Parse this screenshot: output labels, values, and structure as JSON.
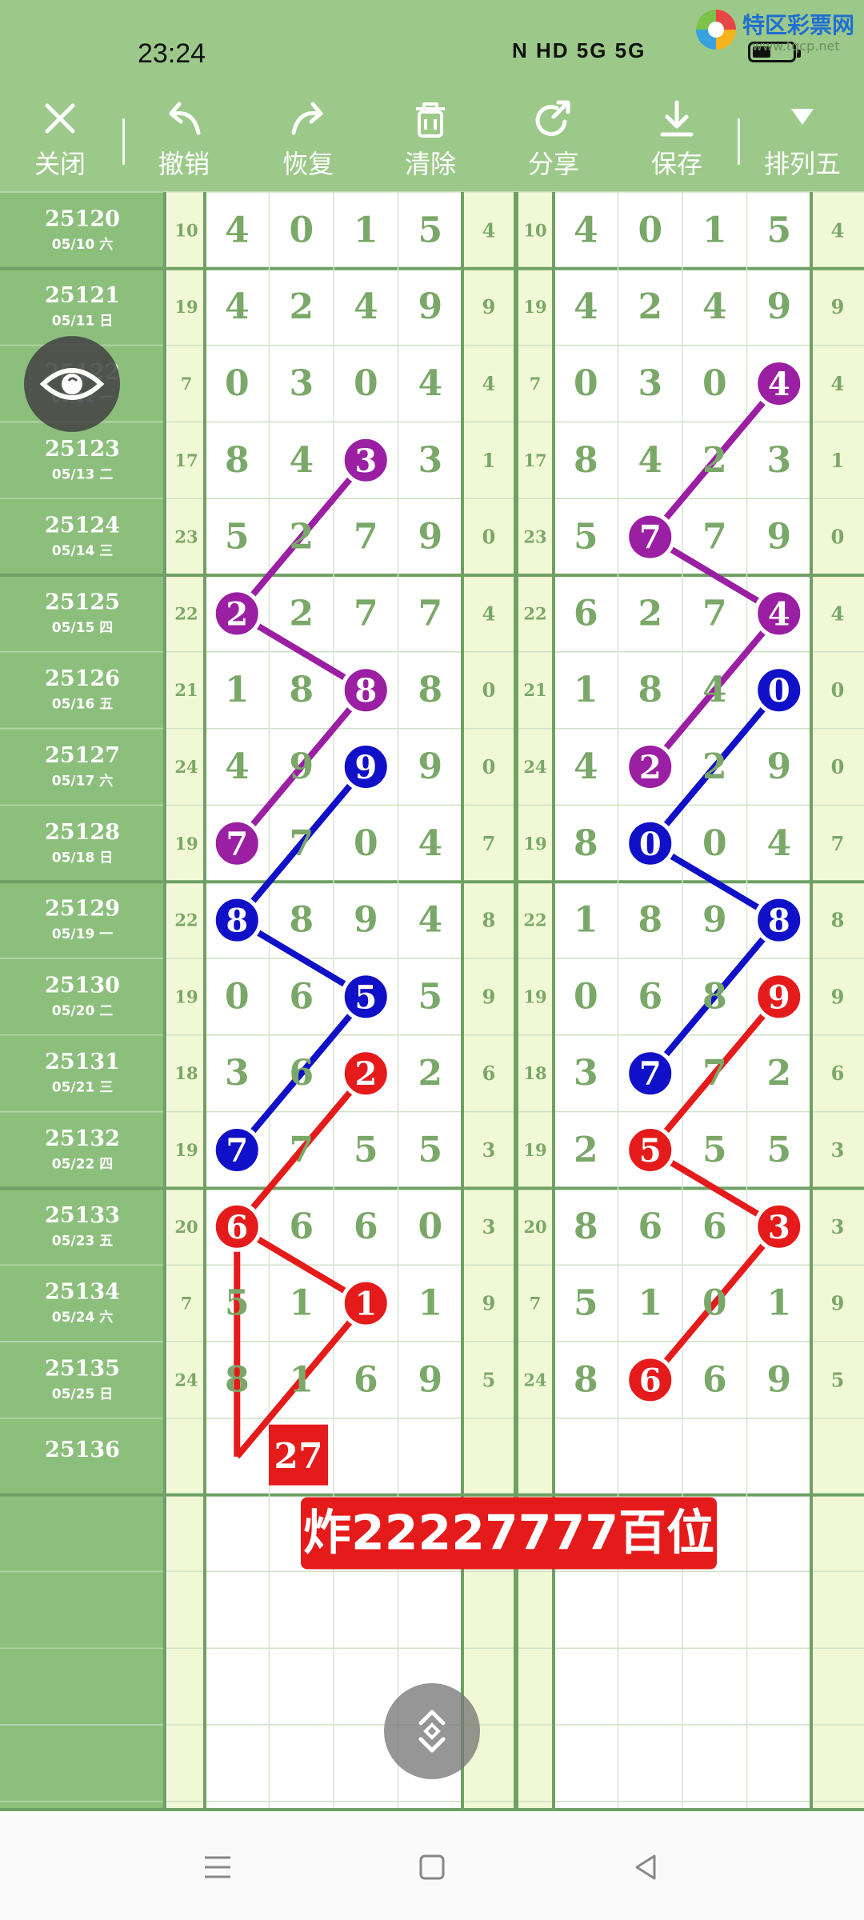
{
  "status": {
    "time": "23:24",
    "icons_text": "N  HD  5G 5G"
  },
  "watermark": {
    "title": "特区彩票网",
    "url": "www.tqcp.net"
  },
  "toolbar": {
    "items": [
      {
        "label": "关闭",
        "icon": "close-icon"
      },
      {
        "label": "撤销",
        "icon": "undo-icon"
      },
      {
        "label": "恢复",
        "icon": "redo-icon"
      },
      {
        "label": "清除",
        "icon": "trash-icon"
      },
      {
        "label": "分享",
        "icon": "share-icon"
      },
      {
        "label": "保存",
        "icon": "download-icon"
      },
      {
        "label": "排列五",
        "icon": "triangle-down-icon"
      }
    ]
  },
  "colors": {
    "bar_green": "#9cc98a",
    "row_label_bg": "#8cbf7c",
    "yellow_col": "#f1f8d5",
    "digit_green": "#7aa868",
    "purple": "#9a1fa2",
    "blue": "#1010c8",
    "red": "#e51b1b"
  },
  "table": {
    "rows": [
      {
        "issue": "25120",
        "date": "05/10 六",
        "sum": "10",
        "digits": [
          "4",
          "0",
          "1",
          "5"
        ],
        "span": "4"
      },
      {
        "issue": "25121",
        "date": "05/11 日",
        "sum": "19",
        "digits": [
          "4",
          "2",
          "4",
          "9"
        ],
        "span": "9"
      },
      {
        "issue": "25122",
        "date": "05/12 一",
        "sum": "7",
        "digits": [
          "0",
          "3",
          "0",
          "4"
        ],
        "span": "4"
      },
      {
        "issue": "25123",
        "date": "05/13 二",
        "sum": "17",
        "digits": [
          "8",
          "4",
          "2",
          "3"
        ],
        "span": "1"
      },
      {
        "issue": "25124",
        "date": "05/14 三",
        "sum": "23",
        "digits": [
          "5",
          "2",
          "7",
          "9"
        ],
        "span": "0"
      },
      {
        "issue": "25125",
        "date": "05/15 四",
        "sum": "22",
        "digits": [
          "6",
          "2",
          "7",
          "7"
        ],
        "span": "4"
      },
      {
        "issue": "25126",
        "date": "05/16 五",
        "sum": "21",
        "digits": [
          "1",
          "8",
          "4",
          "8"
        ],
        "span": "0"
      },
      {
        "issue": "25127",
        "date": "05/17 六",
        "sum": "24",
        "digits": [
          "4",
          "9",
          "2",
          "9"
        ],
        "span": "0"
      },
      {
        "issue": "25128",
        "date": "05/18 日",
        "sum": "19",
        "digits": [
          "8",
          "7",
          "0",
          "4"
        ],
        "span": "7"
      },
      {
        "issue": "25129",
        "date": "05/19 一",
        "sum": "22",
        "digits": [
          "1",
          "8",
          "9",
          "4"
        ],
        "span": "8"
      },
      {
        "issue": "25130",
        "date": "05/20 二",
        "sum": "19",
        "digits": [
          "0",
          "6",
          "8",
          "5"
        ],
        "span": "9"
      },
      {
        "issue": "25131",
        "date": "05/21 三",
        "sum": "18",
        "digits": [
          "3",
          "6",
          "7",
          "2"
        ],
        "span": "6"
      },
      {
        "issue": "25132",
        "date": "05/22 四",
        "sum": "19",
        "digits": [
          "2",
          "7",
          "5",
          "5"
        ],
        "span": "3"
      },
      {
        "issue": "25133",
        "date": "05/23 五",
        "sum": "20",
        "digits": [
          "8",
          "6",
          "6",
          "0"
        ],
        "span": "3"
      },
      {
        "issue": "25134",
        "date": "05/24 六",
        "sum": "7",
        "digits": [
          "5",
          "1",
          "0",
          "1"
        ],
        "span": "9"
      },
      {
        "issue": "25135",
        "date": "05/25 日",
        "sum": "24",
        "digits": [
          "8",
          "1",
          "6",
          "9"
        ],
        "span": "5"
      },
      {
        "issue": "25136",
        "date": "",
        "sum": "",
        "digits": [
          "",
          "",
          "",
          ""
        ],
        "span": ""
      }
    ],
    "highlights_left": [
      {
        "row": 3,
        "col": 3,
        "color": "purple",
        "text": "3"
      },
      {
        "row": 5,
        "col": 1,
        "color": "purple",
        "text": "2"
      },
      {
        "row": 6,
        "col": 3,
        "color": "purple",
        "text": "8"
      },
      {
        "row": 8,
        "col": 1,
        "color": "purple",
        "text": "7"
      },
      {
        "row": 7,
        "col": 3,
        "color": "blue",
        "text": "9"
      },
      {
        "row": 9,
        "col": 1,
        "color": "blue",
        "text": "8"
      },
      {
        "row": 10,
        "col": 3,
        "color": "blue",
        "text": "5"
      },
      {
        "row": 12,
        "col": 1,
        "color": "blue",
        "text": "7"
      },
      {
        "row": 11,
        "col": 3,
        "color": "red",
        "text": "2"
      },
      {
        "row": 13,
        "col": 1,
        "color": "red",
        "text": "6"
      },
      {
        "row": 14,
        "col": 3,
        "color": "red",
        "text": "1"
      }
    ],
    "highlights_right": [
      {
        "row": 2,
        "col": 4,
        "color": "purple",
        "text": "4"
      },
      {
        "row": 4,
        "col": 2,
        "color": "purple",
        "text": "7"
      },
      {
        "row": 5,
        "col": 4,
        "color": "purple",
        "text": "4"
      },
      {
        "row": 7,
        "col": 2,
        "color": "purple",
        "text": "2"
      },
      {
        "row": 6,
        "col": 4,
        "color": "blue",
        "text": "0"
      },
      {
        "row": 8,
        "col": 2,
        "color": "blue",
        "text": "0"
      },
      {
        "row": 9,
        "col": 4,
        "color": "blue",
        "text": "8"
      },
      {
        "row": 11,
        "col": 2,
        "color": "blue",
        "text": "7"
      },
      {
        "row": 10,
        "col": 4,
        "color": "red",
        "text": "9"
      },
      {
        "row": 12,
        "col": 2,
        "color": "red",
        "text": "5"
      },
      {
        "row": 13,
        "col": 4,
        "color": "red",
        "text": "3"
      },
      {
        "row": 15,
        "col": 2,
        "color": "red",
        "text": "6"
      }
    ],
    "prediction_box": "27",
    "banner": "炸22227777百位"
  }
}
